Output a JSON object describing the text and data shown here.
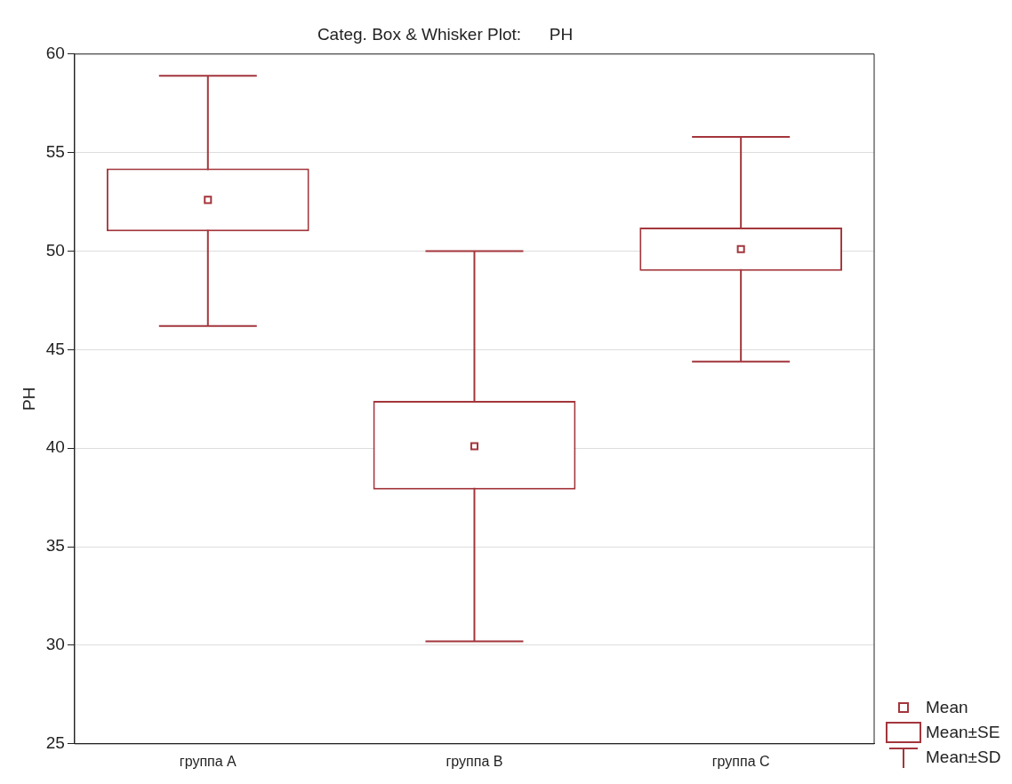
{
  "chart_data": {
    "type": "box",
    "title": "Categ. Box & Whisker Plot:      PH",
    "ylabel": "PH",
    "categories": [
      "группа A",
      "группа B",
      "группа C"
    ],
    "boxes": [
      {
        "low": 46.2,
        "q1": 51.0,
        "median": 52.6,
        "q3": 54.2,
        "high": 58.9
      },
      {
        "low": 30.2,
        "q1": 37.9,
        "median": 40.1,
        "q3": 42.4,
        "high": 50.0
      },
      {
        "low": 44.4,
        "q1": 49.0,
        "median": 50.1,
        "q3": 51.2,
        "high": 55.8
      }
    ],
    "color": "#a3363c",
    "ylim": [
      25,
      60
    ],
    "yticks": [
      25,
      30,
      35,
      40,
      45,
      50,
      55,
      60
    ],
    "grid": "y",
    "marker": "square",
    "annotations": [
      "Mean",
      "Mean±SE",
      "Mean±SD"
    ]
  }
}
